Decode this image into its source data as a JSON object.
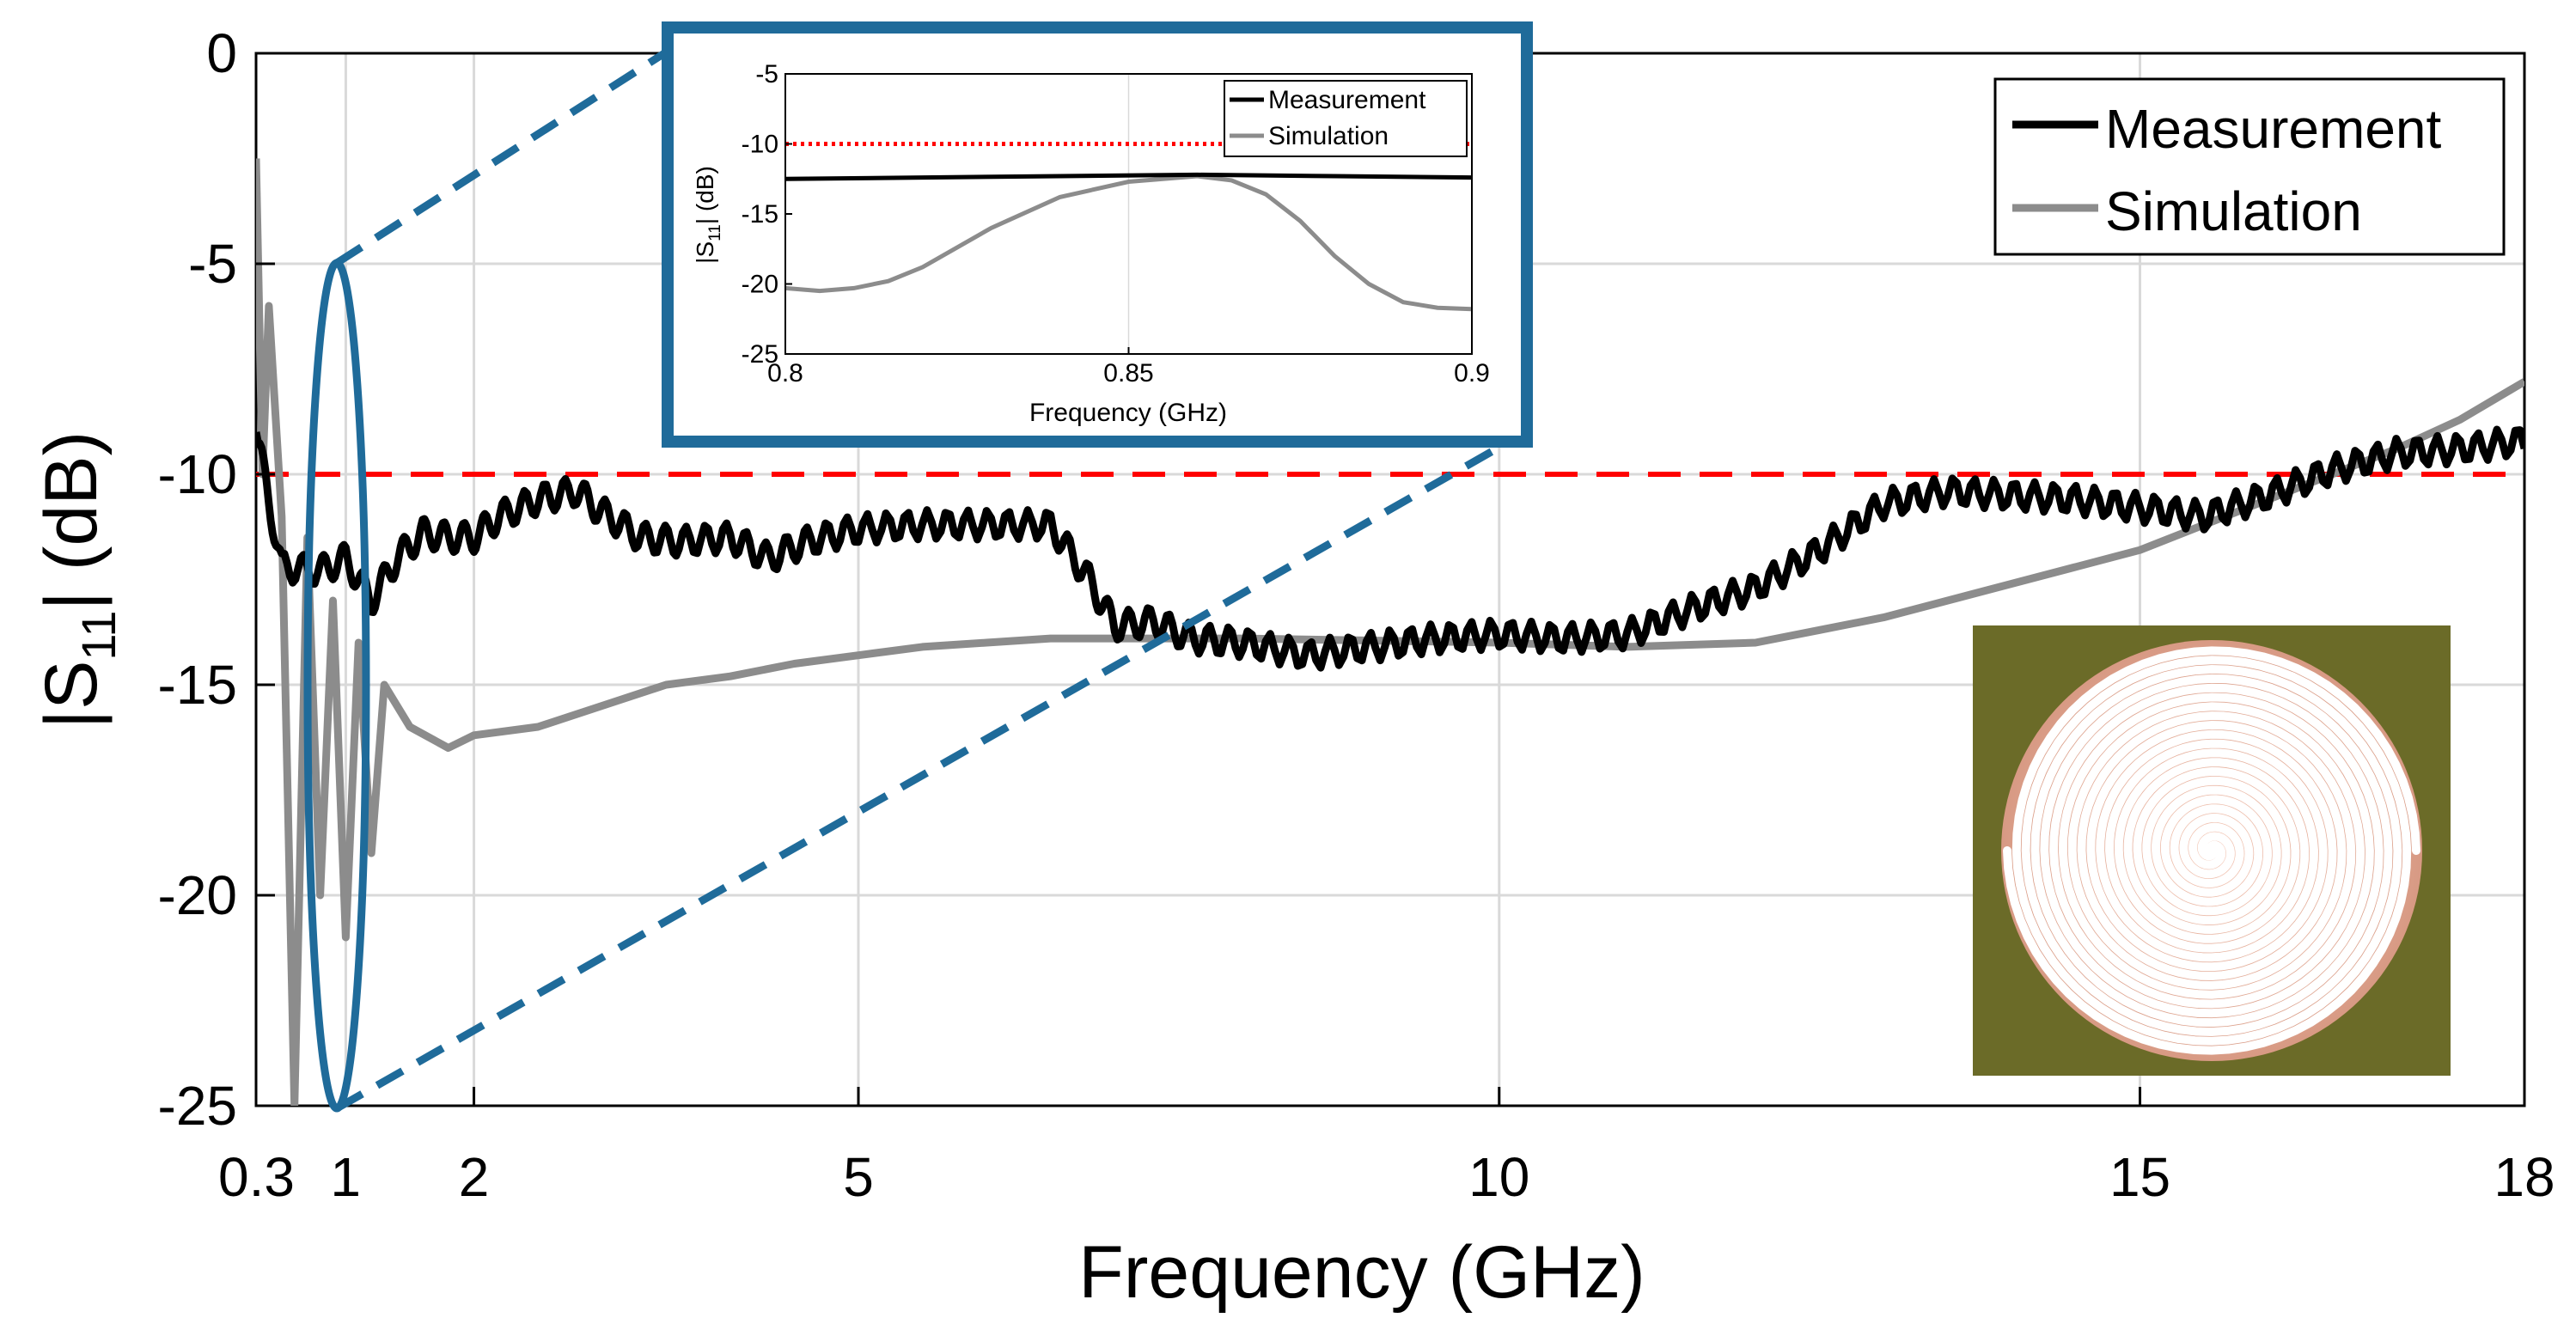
{
  "colors": {
    "measurement": "#000000",
    "simulation": "#8c8c8c",
    "threshold": "#ff0000",
    "zoom_highlight": "#1f6b9a",
    "grid": "#d9d9d9",
    "axis": "#000000",
    "photo_substrate": "#7a7a2e",
    "photo_spiral": "#e8b4a4"
  },
  "chart_data": [
    {
      "type": "line",
      "id": "main",
      "xlabel": "Frequency (GHz)",
      "ylabel_prefix": "|S",
      "ylabel_subscript": "11",
      "ylabel_suffix": "| (dB)",
      "xlim": [
        0.3,
        18
      ],
      "ylim": [
        -25,
        0
      ],
      "xticks": [
        0.3,
        1,
        2,
        5,
        10,
        15,
        18
      ],
      "xtick_labels": [
        "0.3",
        "1",
        "2",
        "5",
        "10",
        "15",
        "18"
      ],
      "yticks": [
        -25,
        -20,
        -15,
        -10,
        -5,
        0
      ],
      "ytick_labels": [
        "-25",
        "-20",
        "-15",
        "-10",
        "-5",
        "0"
      ],
      "grid": true,
      "legend": {
        "position": "top-right",
        "entries": [
          "Measurement",
          "Simulation"
        ]
      },
      "threshold": {
        "y": -10,
        "style": "dashed",
        "color": "red"
      },
      "series": [
        {
          "name": "Measurement",
          "x": [
            0.3,
            0.5,
            0.8,
            1.0,
            1.2,
            1.4,
            1.6,
            1.8,
            2.0,
            2.2,
            2.5,
            2.8,
            3.0,
            3.3,
            3.6,
            4.0,
            4.3,
            4.6,
            5.0,
            5.5,
            6.0,
            6.5,
            6.8,
            7.0,
            7.3,
            7.6,
            8.0,
            8.5,
            9.0,
            9.5,
            10.0,
            10.5,
            11.0,
            11.5,
            12.0,
            12.5,
            13.0,
            13.5,
            14.0,
            14.5,
            15.0,
            15.5,
            16.0,
            16.5,
            17.0,
            17.5,
            18.0
          ],
          "y": [
            -9.0,
            -12.2,
            -12.3,
            -12.0,
            -13.0,
            -12.0,
            -11.4,
            -11.5,
            -11.5,
            -11.0,
            -10.6,
            -10.4,
            -10.9,
            -11.5,
            -11.6,
            -11.5,
            -12.0,
            -11.6,
            -11.3,
            -11.2,
            -11.2,
            -11.2,
            -12.5,
            -13.6,
            -13.5,
            -13.9,
            -14.0,
            -14.3,
            -14.1,
            -13.9,
            -13.8,
            -13.9,
            -13.8,
            -13.2,
            -12.7,
            -11.8,
            -10.7,
            -10.4,
            -10.5,
            -10.6,
            -10.8,
            -11.0,
            -10.5,
            -9.9,
            -9.5,
            -9.4,
            -9.2
          ]
        },
        {
          "name": "Simulation",
          "x": [
            0.3,
            0.35,
            0.4,
            0.5,
            0.6,
            0.7,
            0.8,
            0.9,
            1.0,
            1.1,
            1.2,
            1.3,
            1.5,
            1.8,
            2.0,
            2.5,
            3.0,
            3.5,
            4.0,
            4.5,
            5.0,
            5.5,
            6.0,
            6.5,
            7.0,
            7.5,
            8.0,
            9.0,
            10.0,
            11.0,
            12.0,
            12.5,
            13.0,
            13.5,
            14.0,
            14.5,
            15.0,
            15.5,
            16.0,
            16.5,
            17.0,
            17.5,
            18.0
          ],
          "y": [
            -2.5,
            -10.0,
            -6.0,
            -11.0,
            -25.0,
            -11.5,
            -20.0,
            -13.0,
            -21.0,
            -14.0,
            -19.0,
            -15.0,
            -16.0,
            -16.5,
            -16.2,
            -16.0,
            -15.5,
            -15.0,
            -14.8,
            -14.5,
            -14.3,
            -14.1,
            -14.0,
            -13.9,
            -13.9,
            -13.9,
            -13.9,
            -13.95,
            -14.0,
            -14.1,
            -14.0,
            -13.7,
            -13.4,
            -13.0,
            -12.6,
            -12.2,
            -11.8,
            -11.2,
            -10.6,
            -10.0,
            -9.4,
            -8.7,
            -7.8
          ]
        }
      ]
    },
    {
      "type": "line",
      "id": "inset",
      "xlabel": "Frequency (GHz)",
      "ylabel_prefix": "|S",
      "ylabel_subscript": "11",
      "ylabel_suffix": "| (dB)",
      "xlim": [
        0.8,
        0.9
      ],
      "ylim": [
        -25,
        -5
      ],
      "xticks": [
        0.8,
        0.85,
        0.9
      ],
      "xtick_labels": [
        "0.8",
        "0.85",
        "0.9"
      ],
      "yticks": [
        -25,
        -20,
        -15,
        -10,
        -5
      ],
      "ytick_labels": [
        "-25",
        "-20",
        "-15",
        "-10",
        "-5"
      ],
      "legend": {
        "position": "top-right",
        "entries": [
          "Measurement",
          "Simulation"
        ]
      },
      "threshold": {
        "y": -10,
        "style": "dotted",
        "color": "red"
      },
      "series": [
        {
          "name": "Measurement",
          "x": [
            0.8,
            0.82,
            0.84,
            0.86,
            0.88,
            0.9
          ],
          "y": [
            -12.5,
            -12.4,
            -12.3,
            -12.2,
            -12.3,
            -12.4
          ]
        },
        {
          "name": "Simulation",
          "x": [
            0.8,
            0.805,
            0.81,
            0.815,
            0.82,
            0.83,
            0.84,
            0.85,
            0.86,
            0.865,
            0.87,
            0.875,
            0.88,
            0.885,
            0.89,
            0.895,
            0.9
          ],
          "y": [
            -20.3,
            -20.5,
            -20.3,
            -19.8,
            -18.8,
            -16.0,
            -13.8,
            -12.7,
            -12.3,
            -12.6,
            -13.6,
            -15.5,
            -18.0,
            -20.0,
            -21.3,
            -21.7,
            -21.8
          ]
        }
      ]
    }
  ],
  "photo": {
    "description_icon": "spiral-antenna-photo"
  }
}
